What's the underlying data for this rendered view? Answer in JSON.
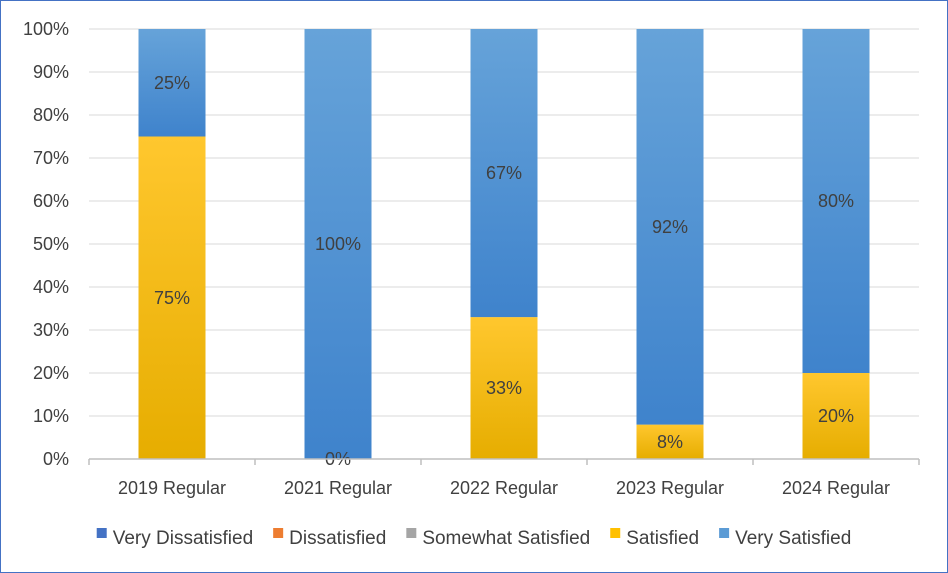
{
  "chart_data": {
    "type": "bar",
    "stacked": true,
    "percent_stacked": true,
    "categories": [
      "2019 Regular",
      "2021 Regular",
      "2022 Regular",
      "2023 Regular",
      "2024 Regular"
    ],
    "series": [
      {
        "name": "Very Dissatisfied",
        "color": "#4472c4",
        "values": [
          0,
          0,
          0,
          0,
          0
        ],
        "labels": [
          null,
          "0%",
          null,
          null,
          null
        ]
      },
      {
        "name": "Dissatisfied",
        "color": "#ed7d31",
        "values": [
          0,
          0,
          0,
          0,
          0
        ],
        "labels": [
          null,
          null,
          null,
          null,
          null
        ]
      },
      {
        "name": "Somewhat Satisfied",
        "color": "#a5a5a5",
        "values": [
          0,
          0,
          0,
          0,
          0
        ],
        "labels": [
          null,
          null,
          null,
          null,
          null
        ]
      },
      {
        "name": "Satisfied",
        "color": "#ffc000",
        "values": [
          75,
          0,
          33,
          8,
          20
        ],
        "labels": [
          "75%",
          null,
          "33%",
          "8%",
          "20%"
        ]
      },
      {
        "name": "Very Satisfied",
        "color": "#5b9bd5",
        "values": [
          25,
          100,
          67,
          92,
          80
        ],
        "labels": [
          "25%",
          "100%",
          "67%",
          "92%",
          "80%"
        ]
      }
    ],
    "yticks": [
      "0%",
      "10%",
      "20%",
      "30%",
      "40%",
      "50%",
      "60%",
      "70%",
      "80%",
      "90%",
      "100%"
    ],
    "ylim": [
      0,
      100
    ],
    "grid": true,
    "legend": "bottom"
  }
}
